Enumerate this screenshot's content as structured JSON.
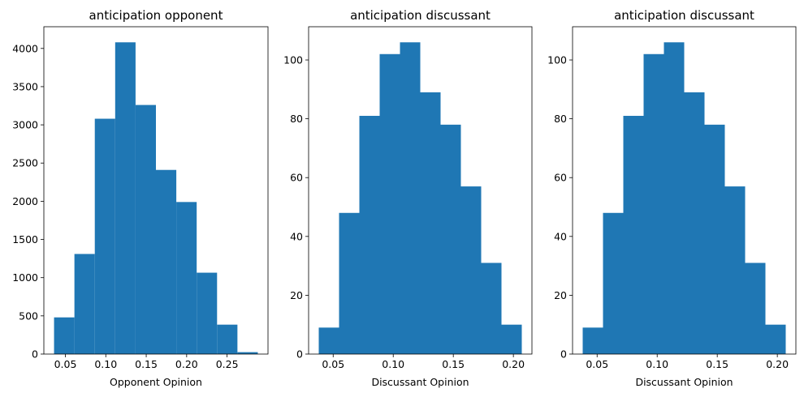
{
  "chart_data": [
    {
      "type": "bar",
      "title": "anticipation opponent",
      "xlabel": "Opponent Opinion",
      "ylabel": "",
      "bin_edges": [
        0.036,
        0.0612,
        0.0864,
        0.1116,
        0.1368,
        0.162,
        0.1872,
        0.2124,
        0.2376,
        0.2628,
        0.288
      ],
      "values": [
        480,
        1310,
        3080,
        4080,
        3260,
        2410,
        1990,
        1065,
        385,
        25
      ],
      "xlim": [
        0.0234,
        0.3006
      ],
      "ylim": [
        0,
        4284
      ],
      "xticks": [
        0.05,
        0.1,
        0.15,
        0.2,
        0.25
      ],
      "xtick_labels": [
        "0.05",
        "0.10",
        "0.15",
        "0.20",
        "0.25"
      ],
      "yticks": [
        0,
        500,
        1000,
        1500,
        2000,
        2500,
        3000,
        3500,
        4000
      ],
      "ytick_labels": [
        "0",
        "500",
        "1000",
        "1500",
        "2000",
        "2500",
        "3000",
        "3500",
        "4000"
      ],
      "bar_color": "#1f77b4"
    },
    {
      "type": "bar",
      "title": "anticipation discussant",
      "xlabel": "Discussant Opinion",
      "ylabel": "",
      "bin_edges": [
        0.038,
        0.0549,
        0.0718,
        0.0887,
        0.1056,
        0.1225,
        0.1394,
        0.1563,
        0.1732,
        0.1901,
        0.207
      ],
      "values": [
        9,
        48,
        81,
        102,
        106,
        89,
        78,
        57,
        31,
        10
      ],
      "xlim": [
        0.02955,
        0.21545
      ],
      "ylim": [
        0,
        111.3
      ],
      "xticks": [
        0.05,
        0.1,
        0.15,
        0.2
      ],
      "xtick_labels": [
        "0.05",
        "0.10",
        "0.15",
        "0.20"
      ],
      "yticks": [
        0,
        20,
        40,
        60,
        80,
        100
      ],
      "ytick_labels": [
        "0",
        "20",
        "40",
        "60",
        "80",
        "100"
      ],
      "bar_color": "#1f77b4"
    },
    {
      "type": "bar",
      "title": "anticipation discussant",
      "xlabel": "Discussant Opinion",
      "ylabel": "",
      "bin_edges": [
        0.038,
        0.0549,
        0.0718,
        0.0887,
        0.1056,
        0.1225,
        0.1394,
        0.1563,
        0.1732,
        0.1901,
        0.207
      ],
      "values": [
        9,
        48,
        81,
        102,
        106,
        89,
        78,
        57,
        31,
        10
      ],
      "xlim": [
        0.02955,
        0.21545
      ],
      "ylim": [
        0,
        111.3
      ],
      "xticks": [
        0.05,
        0.1,
        0.15,
        0.2
      ],
      "xtick_labels": [
        "0.05",
        "0.10",
        "0.15",
        "0.20"
      ],
      "yticks": [
        0,
        20,
        40,
        60,
        80,
        100
      ],
      "ytick_labels": [
        "0",
        "20",
        "40",
        "60",
        "80",
        "100"
      ],
      "bar_color": "#1f77b4"
    }
  ]
}
